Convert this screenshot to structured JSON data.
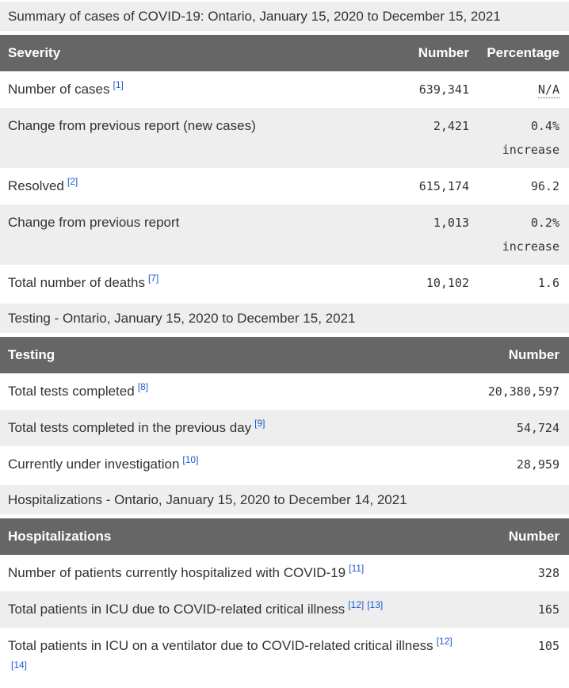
{
  "colors": {
    "table_header_bg": "#666666",
    "caption_bg": "#eeeeee",
    "row_alt_bg": "#eeeeee",
    "footnote_link_blue": "#1a5ad2",
    "text": "#333333"
  },
  "tables": [
    {
      "caption": "Summary of cases of COVID-19: Ontario, January 15, 2020 to December 15, 2021",
      "col1": "Severity",
      "col2": "Number",
      "col3": "Percentage",
      "rows": [
        {
          "label": "Number of cases",
          "ref1": "[1]",
          "number": "639,341",
          "pct1": "N/A"
        },
        {
          "label": "Change from previous report (new cases)",
          "number": "2,421",
          "pct1": "0.4%",
          "pct2": "increase"
        },
        {
          "label": "Resolved",
          "ref1": "[2]",
          "number": "615,174",
          "pct1": "96.2"
        },
        {
          "label": "Change from previous report",
          "number": "1,013",
          "pct1": "0.2%",
          "pct2": "increase"
        },
        {
          "label": "Total number of deaths",
          "ref1": "[7]",
          "number": "10,102",
          "pct1": "1.6"
        }
      ]
    },
    {
      "caption": "Testing - Ontario, January 15, 2020 to December 15, 2021",
      "col1": "Testing",
      "col2": "Number",
      "rows": [
        {
          "label": "Total tests completed",
          "ref1": "[8]",
          "number": "20,380,597"
        },
        {
          "label": "Total tests completed in the previous day",
          "ref1": "[9]",
          "number": "54,724"
        },
        {
          "label": "Currently under investigation",
          "ref1": "[10]",
          "number": "28,959"
        }
      ]
    },
    {
      "caption": "Hospitalizations - Ontario, January 15, 2020 to December 14, 2021",
      "col1": "Hospitalizations",
      "col2": "Number",
      "rows": [
        {
          "label": "Number of patients currently hospitalized with COVID-19",
          "ref1": "[11]",
          "number": "328"
        },
        {
          "label": "Total patients in ICU due to COVID-related critical illness",
          "ref1": "[12]",
          "ref2": "[13]",
          "number": "165"
        },
        {
          "label": "Total patients in ICU on a ventilator due to COVID-related critical illness",
          "ref1": "[12]",
          "ref2": "[14]",
          "number": "105"
        }
      ]
    }
  ]
}
